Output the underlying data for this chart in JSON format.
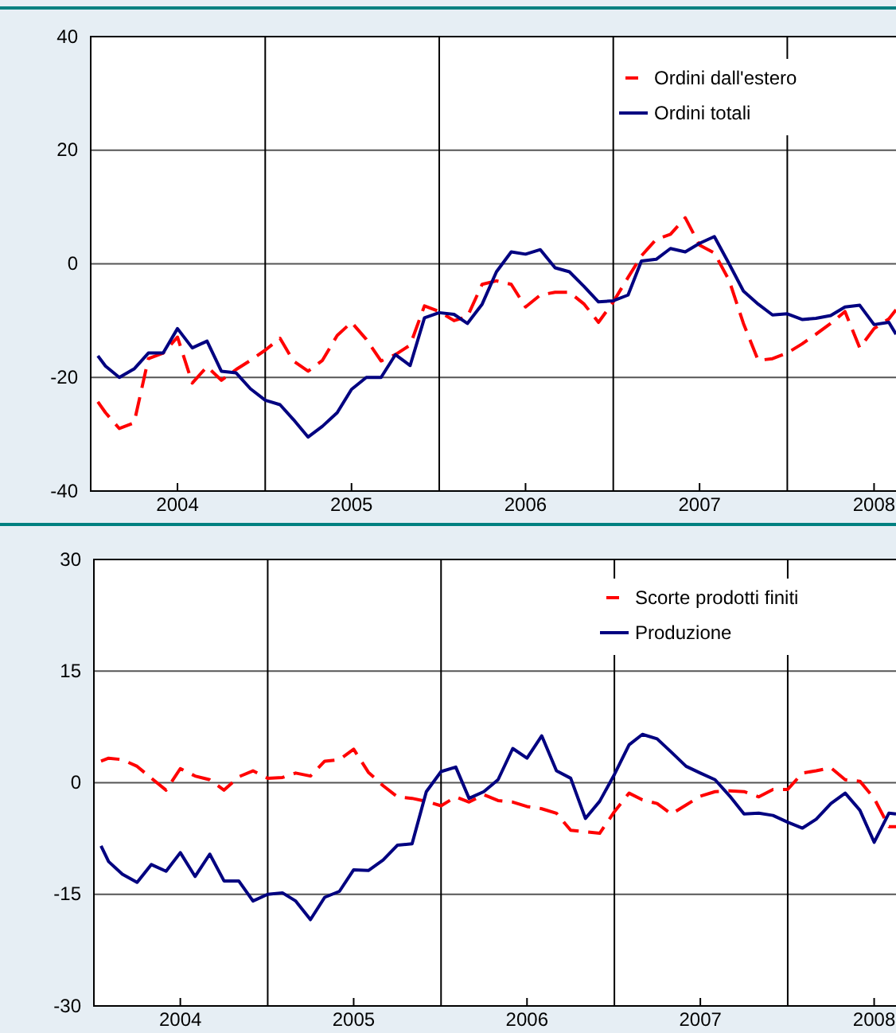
{
  "chart_data": [
    {
      "type": "line",
      "x": [
        "2004-01-16",
        "2004-02-01",
        "2004-03-01",
        "2004-04-01",
        "2004-05-01",
        "2004-06-01",
        "2004-07-01",
        "2004-08-01",
        "2004-09-01",
        "2004-10-01",
        "2004-11-01",
        "2004-12-01",
        "2005-01-01",
        "2005-02-01",
        "2005-03-01",
        "2005-04-01",
        "2005-05-01",
        "2005-06-01",
        "2005-07-01",
        "2005-08-01",
        "2005-09-01",
        "2005-10-01",
        "2005-11-01",
        "2005-12-01",
        "2006-01-01",
        "2006-02-01",
        "2006-03-01",
        "2006-04-01",
        "2006-05-01",
        "2006-06-01",
        "2006-07-01",
        "2006-08-01",
        "2006-09-01",
        "2006-10-01",
        "2006-11-01",
        "2006-12-01",
        "2007-01-01",
        "2007-02-01",
        "2007-03-01",
        "2007-04-01",
        "2007-05-01",
        "2007-06-01",
        "2007-07-01",
        "2007-08-01",
        "2007-09-01",
        "2007-10-01",
        "2007-11-01",
        "2007-12-01",
        "2008-01-01",
        "2008-02-01",
        "2008-03-01",
        "2008-04-01",
        "2008-05-01",
        "2008-06-01",
        "2008-07-01",
        "2008-08-01",
        "2008-08-16"
      ],
      "series": [
        {
          "name": "Ordini dall'estero",
          "color": "#ff0000",
          "line_style": "dashed",
          "values": [
            -24.3,
            -26.2,
            -29,
            -28,
            -16.7,
            -15.7,
            -12.9,
            -21,
            -18.1,
            -20.5,
            -18.6,
            -17,
            -15.2,
            -13.1,
            -17.1,
            -18.9,
            -17,
            -12.6,
            -10.3,
            -13.3,
            -17.1,
            -16,
            -14.3,
            -7.4,
            -8.4,
            -10,
            -9.3,
            -3.6,
            -3,
            -3.6,
            -7.6,
            -5.5,
            -5,
            -5,
            -7.1,
            -10.3,
            -6.7,
            -2.4,
            1.4,
            4.3,
            5.2,
            8.1,
            3.3,
            1.9,
            -2.9,
            -10.5,
            -17,
            -16.7,
            -15.7,
            -14.1,
            -12.4,
            -10.5,
            -8.4,
            -14.8,
            -11.4,
            -9.7,
            -8.1
          ]
        },
        {
          "name": "Ordini totali",
          "color": "#000080",
          "line_style": "solid",
          "values": [
            -16.2,
            -18,
            -20,
            -18.5,
            -15.7,
            -15.7,
            -11.4,
            -14.8,
            -13.6,
            -18.9,
            -19.2,
            -22,
            -24,
            -24.8,
            -27.4,
            -30.5,
            -28.6,
            -26.2,
            -22.1,
            -20,
            -20,
            -16,
            -17.9,
            -9.5,
            -8.6,
            -8.9,
            -10.5,
            -7.1,
            -1.4,
            2.1,
            1.7,
            2.5,
            -0.7,
            -1.4,
            -4,
            -6.7,
            -6.5,
            -5.5,
            0.5,
            0.8,
            2.7,
            2.1,
            3.6,
            4.8,
            0,
            -4.8,
            -7.1,
            -9,
            -8.8,
            -9.8,
            -9.6,
            -9.1,
            -7.6,
            -7.3,
            -10.7,
            -10.3,
            -12.4
          ]
        }
      ],
      "xlim": [
        "2004-01-01",
        "2008-08-16"
      ],
      "xticks": [
        {
          "value": "2004-07-01",
          "label": "2004"
        },
        {
          "value": "2005-07-01",
          "label": "2005"
        },
        {
          "value": "2006-07-01",
          "label": "2006"
        },
        {
          "value": "2007-07-01",
          "label": "2007"
        },
        {
          "value": "2008-07-01",
          "label": "2008"
        }
      ],
      "ylim": [
        -40,
        40
      ],
      "yticks": [
        -40,
        -20,
        0,
        20,
        40
      ],
      "grid": "y",
      "legend": "top right",
      "marker": "none",
      "ref_lines": [
        {
          "axis": "x",
          "value": "2005-01-01",
          "color": "#000000"
        },
        {
          "axis": "x",
          "value": "2006-01-01",
          "color": "#000000"
        },
        {
          "axis": "x",
          "value": "2007-01-01",
          "color": "#000000"
        },
        {
          "axis": "x",
          "value": "2008-01-01",
          "color": "#000000"
        }
      ]
    },
    {
      "type": "line",
      "x": [
        "2004-01-16",
        "2004-02-01",
        "2004-03-01",
        "2004-04-01",
        "2004-05-01",
        "2004-06-01",
        "2004-07-01",
        "2004-08-01",
        "2004-09-01",
        "2004-10-01",
        "2004-11-01",
        "2004-12-01",
        "2005-01-01",
        "2005-02-01",
        "2005-03-01",
        "2005-04-01",
        "2005-05-01",
        "2005-06-01",
        "2005-07-01",
        "2005-08-01",
        "2005-09-01",
        "2005-10-01",
        "2005-11-01",
        "2005-12-01",
        "2006-01-01",
        "2006-02-01",
        "2006-03-01",
        "2006-04-01",
        "2006-05-01",
        "2006-06-01",
        "2006-07-01",
        "2006-08-01",
        "2006-09-01",
        "2006-10-01",
        "2006-11-01",
        "2006-12-01",
        "2007-01-01",
        "2007-02-01",
        "2007-03-01",
        "2007-04-01",
        "2007-05-01",
        "2007-06-01",
        "2007-07-01",
        "2007-08-01",
        "2007-09-01",
        "2007-10-01",
        "2007-11-01",
        "2007-12-01",
        "2008-01-01",
        "2008-02-01",
        "2008-03-01",
        "2008-04-01",
        "2008-05-01",
        "2008-06-01",
        "2008-07-01",
        "2008-08-01",
        "2008-08-16"
      ],
      "series": [
        {
          "name": "Scorte prodotti finiti",
          "color": "#ff0000",
          "line_style": "dashed",
          "values": [
            2.9,
            3.3,
            3.1,
            2.2,
            0.6,
            -1,
            1.9,
            0.9,
            0.4,
            -1,
            0.8,
            1.6,
            0.6,
            0.7,
            1.3,
            0.9,
            2.9,
            3.1,
            4.5,
            1.4,
            -0.4,
            -1.9,
            -2.1,
            -2.5,
            -3.1,
            -1.9,
            -2.6,
            -1.6,
            -2.4,
            -2.6,
            -3.2,
            -3.5,
            -4.1,
            -6.4,
            -6.6,
            -6.8,
            -3.9,
            -1.4,
            -2.3,
            -2.8,
            -4.2,
            -3,
            -1.8,
            -1.2,
            -1.1,
            -1.2,
            -1.9,
            -0.9,
            -0.9,
            1.3,
            1.6,
            2,
            0.4,
            0.2,
            -2.1,
            -5.9,
            -5.9
          ]
        },
        {
          "name": "Produzione",
          "color": "#000080",
          "line_style": "solid",
          "values": [
            -8.5,
            -10.6,
            -12.3,
            -13.4,
            -11,
            -11.9,
            -9.4,
            -12.6,
            -9.6,
            -13.2,
            -13.2,
            -15.9,
            -15,
            -14.8,
            -15.9,
            -18.4,
            -15.4,
            -14.6,
            -11.7,
            -11.8,
            -10.4,
            -8.4,
            -8.2,
            -1.2,
            1.5,
            2.1,
            -2.1,
            -1.2,
            0.4,
            4.6,
            3.3,
            6.3,
            1.6,
            0.6,
            -4.8,
            -2.5,
            1.1,
            5.1,
            6.5,
            5.9,
            4.1,
            2.2,
            1.3,
            0.4,
            -1.8,
            -4.2,
            -4.1,
            -4.4,
            -5.3,
            -6.1,
            -4.9,
            -2.8,
            -1.4,
            -3.7,
            -8,
            -4.1,
            -4.2
          ]
        }
      ],
      "xlim": [
        "2004-01-01",
        "2008-08-16"
      ],
      "xticks": [
        {
          "value": "2004-07-01",
          "label": "2004"
        },
        {
          "value": "2005-07-01",
          "label": "2005"
        },
        {
          "value": "2006-07-01",
          "label": "2006"
        },
        {
          "value": "2007-07-01",
          "label": "2007"
        },
        {
          "value": "2008-07-01",
          "label": "2008"
        }
      ],
      "ylim": [
        -30,
        30
      ],
      "yticks": [
        -30,
        -15,
        0,
        15,
        30
      ],
      "grid": "y",
      "legend": "top right",
      "marker": "none",
      "ref_lines": [
        {
          "axis": "x",
          "value": "2005-01-01",
          "color": "#000000"
        },
        {
          "axis": "x",
          "value": "2006-01-01",
          "color": "#000000"
        },
        {
          "axis": "x",
          "value": "2007-01-01",
          "color": "#000000"
        },
        {
          "axis": "x",
          "value": "2008-01-01",
          "color": "#000000"
        }
      ]
    }
  ]
}
